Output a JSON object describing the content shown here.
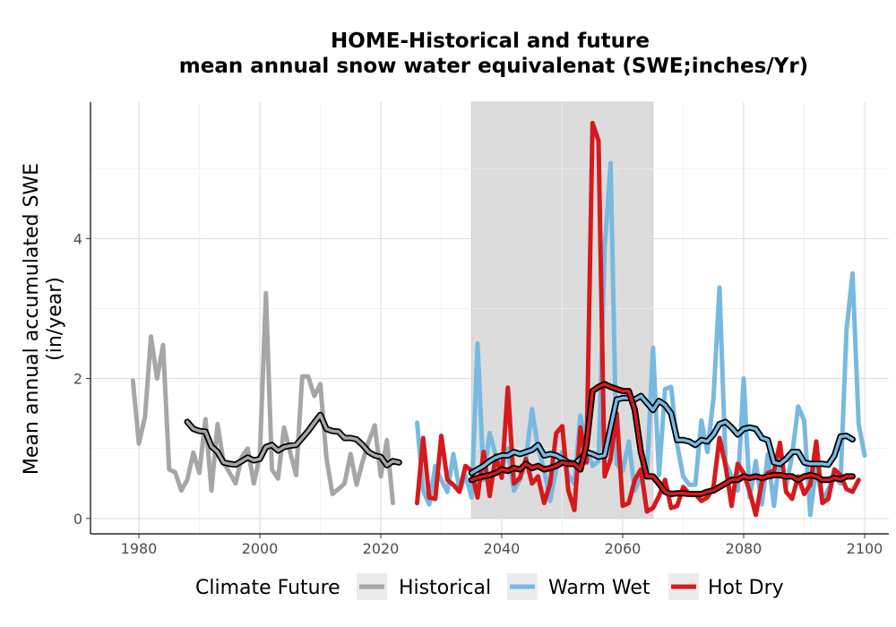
{
  "chart_data": {
    "type": "line",
    "title_line1": "HOME-Historical and future",
    "title_line2": "mean annual snow water equivalenat (SWE;inches/Yr)",
    "xlabel": "",
    "ylabel_line1": "Mean annual accumulated SWE",
    "ylabel_line2": "(in/year)",
    "xlim": [
      1972,
      2104
    ],
    "ylim": [
      -0.22,
      5.95
    ],
    "xticks": [
      1980,
      2000,
      2020,
      2040,
      2060,
      2080,
      2100
    ],
    "yticks": [
      0,
      2,
      4
    ],
    "grid": true,
    "shaded_period": [
      2035,
      2065
    ],
    "legend": {
      "title": "Climate Future",
      "position": "bottom",
      "entries": [
        {
          "label": "Historical",
          "color": "#a6a6a6"
        },
        {
          "label": "Warm Wet",
          "color": "#77b9e1"
        },
        {
          "label": "Hot Dry",
          "color": "#d7191c"
        }
      ]
    },
    "series": [
      {
        "name": "Historical",
        "color": "#a6a6a6",
        "x_start": 1979,
        "values": [
          1.97,
          1.07,
          1.45,
          2.6,
          2.0,
          2.48,
          0.7,
          0.66,
          0.4,
          0.55,
          0.94,
          0.65,
          1.42,
          0.4,
          1.35,
          0.8,
          0.65,
          0.5,
          0.88,
          1.0,
          0.5,
          0.9,
          3.22,
          0.7,
          0.57,
          1.3,
          0.95,
          0.62,
          2.03,
          2.03,
          1.75,
          1.92,
          0.87,
          0.35,
          0.42,
          0.5,
          0.92,
          0.48,
          0.82,
          1.1,
          1.33,
          0.6,
          1.12,
          0.22
        ]
      },
      {
        "name": "Historical smoothed",
        "color": "#000000",
        "x_start": 1988,
        "values": [
          1.38,
          1.28,
          1.25,
          1.24,
          1.03,
          0.95,
          0.8,
          0.78,
          0.77,
          0.82,
          0.87,
          0.83,
          0.85,
          1.02,
          1.05,
          0.97,
          1.02,
          1.04,
          1.05,
          1.15,
          1.25,
          1.37,
          1.48,
          1.28,
          1.25,
          1.24,
          1.15,
          1.15,
          1.13,
          1.05,
          0.95,
          0.9,
          0.88,
          0.76,
          0.82,
          0.8
        ]
      },
      {
        "name": "Warm Wet",
        "color": "#77b9e1",
        "x_start": 2026,
        "values": [
          1.37,
          0.4,
          0.2,
          0.75,
          0.55,
          0.38,
          0.92,
          0.4,
          0.62,
          0.3,
          2.5,
          0.55,
          1.22,
          0.9,
          0.7,
          1.0,
          0.4,
          0.55,
          0.85,
          1.56,
          1.0,
          0.7,
          0.25,
          0.7,
          0.95,
          0.62,
          0.5,
          1.47,
          1.0,
          0.75,
          0.82,
          3.85,
          5.08,
          0.78,
          0.68,
          1.1,
          0.4,
          0.6,
          0.6,
          2.44,
          0.62,
          1.85,
          1.88,
          1.05,
          0.6,
          0.48,
          0.48,
          1.4,
          0.95,
          1.72,
          3.3,
          0.8,
          0.6,
          0.4,
          2.0,
          0.3,
          0.82,
          0.2,
          0.92,
          0.18,
          0.92,
          0.45,
          0.9,
          1.6,
          1.4,
          0.05,
          0.75,
          0.25,
          0.42,
          0.6,
          0.5,
          2.7,
          3.5,
          1.35,
          0.9
        ]
      },
      {
        "name": "Warm Wet smoothed",
        "color": "#000000",
        "x_start": 2035,
        "values": [
          0.65,
          0.7,
          0.75,
          0.82,
          0.87,
          0.9,
          0.9,
          0.95,
          0.92,
          0.95,
          0.98,
          1.05,
          0.9,
          0.92,
          0.9,
          0.85,
          0.8,
          0.78,
          0.85,
          0.95,
          0.92,
          0.88,
          0.9,
          1.3,
          1.7,
          1.72,
          1.72,
          1.7,
          1.75,
          1.65,
          1.55,
          1.68,
          1.62,
          1.5,
          1.12,
          1.12,
          1.1,
          1.05,
          1.12,
          1.1,
          1.2,
          1.35,
          1.38,
          1.3,
          1.2,
          1.28,
          1.3,
          1.28,
          1.15,
          1.12,
          0.8,
          0.78,
          0.85,
          0.95,
          0.95,
          0.8,
          0.78,
          0.78,
          0.78,
          0.77,
          0.9,
          1.17,
          1.18,
          1.13
        ]
      },
      {
        "name": "Hot Dry",
        "color": "#d7191c",
        "x_start": 2026,
        "values": [
          0.22,
          1.15,
          0.3,
          0.28,
          1.18,
          0.55,
          0.48,
          0.38,
          0.75,
          0.68,
          0.3,
          0.95,
          0.32,
          0.9,
          0.58,
          1.87,
          0.5,
          0.58,
          0.85,
          0.5,
          0.6,
          0.22,
          0.5,
          1.22,
          1.32,
          0.4,
          0.12,
          1.3,
          0.8,
          5.65,
          5.4,
          0.6,
          0.85,
          1.5,
          0.18,
          0.22,
          0.55,
          0.7,
          0.1,
          0.15,
          0.32,
          0.55,
          0.15,
          0.18,
          0.45,
          0.35,
          0.35,
          0.25,
          0.3,
          0.45,
          1.15,
          0.75,
          0.18,
          0.78,
          0.65,
          0.38,
          0.05,
          0.52,
          0.65,
          0.68,
          1.08,
          0.38,
          0.28,
          0.6,
          0.35,
          0.48,
          1.1,
          0.22,
          0.28,
          0.7,
          0.62,
          0.42,
          0.38,
          0.55
        ]
      },
      {
        "name": "Hot Dry smoothed",
        "color": "#000000",
        "x_start": 2035,
        "values": [
          0.55,
          0.58,
          0.6,
          0.62,
          0.65,
          0.7,
          0.68,
          0.72,
          0.7,
          0.78,
          0.72,
          0.75,
          0.7,
          0.72,
          0.75,
          0.8,
          0.78,
          0.78,
          0.7,
          1.05,
          1.82,
          1.88,
          1.92,
          1.88,
          1.85,
          1.82,
          1.82,
          1.55,
          0.95,
          0.6,
          0.6,
          0.5,
          0.38,
          0.35,
          0.36,
          0.36,
          0.35,
          0.35,
          0.35,
          0.38,
          0.4,
          0.45,
          0.5,
          0.55,
          0.55,
          0.6,
          0.58,
          0.6,
          0.58,
          0.6,
          0.62,
          0.62,
          0.6,
          0.6,
          0.55,
          0.6,
          0.62,
          0.6,
          0.55,
          0.55,
          0.58,
          0.56,
          0.6,
          0.6
        ]
      }
    ]
  }
}
